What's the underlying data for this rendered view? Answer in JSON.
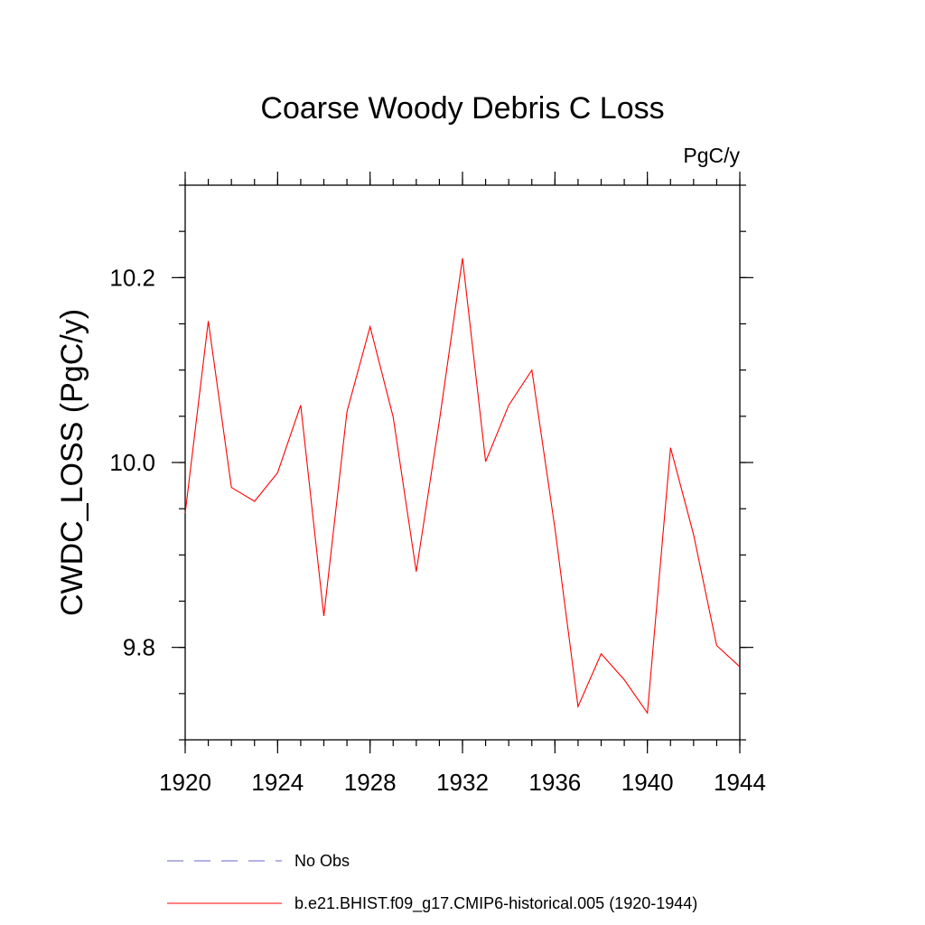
{
  "chart_data": {
    "type": "line",
    "title": "Coarse Woody Debris C Loss",
    "units": "PgC/y",
    "xlabel": "",
    "ylabel": "CWDC_LOSS  (PgC/y)",
    "xlim": [
      1920,
      1944
    ],
    "ylim": [
      9.7,
      10.3
    ],
    "x_ticks": [
      1920,
      1924,
      1928,
      1932,
      1936,
      1940,
      1944
    ],
    "x_tick_labels": [
      "1920",
      "1924",
      "1928",
      "1932",
      "1936",
      "1940",
      "1944"
    ],
    "y_ticks": [
      9.8,
      10.0,
      10.2
    ],
    "y_tick_labels": [
      "9.8",
      "10.0",
      "10.2"
    ],
    "series": [
      {
        "name": "b.e21.BHIST.f09_g17.CMIP6-historical.005 (1920-1944)",
        "color": "#ff0000",
        "style": "solid",
        "x": [
          1920,
          1921,
          1922,
          1923,
          1924,
          1925,
          1926,
          1927,
          1928,
          1929,
          1930,
          1931,
          1932,
          1933,
          1934,
          1935,
          1936,
          1937,
          1938,
          1939,
          1940,
          1941,
          1942,
          1943,
          1944
        ],
        "values": [
          9.945,
          10.153,
          9.973,
          9.958,
          9.989,
          10.062,
          9.834,
          10.055,
          10.147,
          10.049,
          9.882,
          10.045,
          10.221,
          10.001,
          10.062,
          10.1,
          9.929,
          9.736,
          9.793,
          9.765,
          9.729,
          10.016,
          9.922,
          9.802,
          9.779
        ]
      }
    ],
    "legend": [
      {
        "label": "No Obs",
        "color": "#6666cc",
        "style": "dashed"
      },
      {
        "label": "b.e21.BHIST.f09_g17.CMIP6-historical.005 (1920-1944)",
        "color": "#ff0000",
        "style": "solid"
      }
    ],
    "legend_position": "bottom"
  }
}
